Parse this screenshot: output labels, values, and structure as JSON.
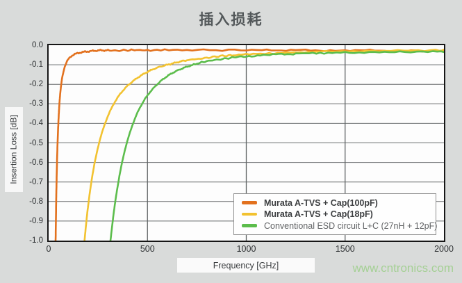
{
  "watermark": {
    "text": "www.cntronics.com",
    "color": "#A5D095"
  },
  "chart_data": {
    "type": "line",
    "title": "插入损耗",
    "xlabel": "Frequency [GHz]",
    "ylabel": "Insertion Loss [dB]",
    "xlim": [
      0,
      2000
    ],
    "ylim": [
      -1.0,
      0.0
    ],
    "xticks": {
      "values": [
        0,
        500,
        1000,
        1500,
        2000
      ],
      "labels": [
        "0",
        "500",
        "1000",
        "1500",
        "2000"
      ]
    },
    "yticks": {
      "values": [
        0.0,
        -0.1,
        -0.2,
        -0.3,
        -0.4,
        -0.5,
        -0.6,
        -0.7,
        -0.8,
        -0.9,
        -1.0
      ],
      "labels": [
        "0.0",
        "-0.1",
        "-0.2",
        "-0.3",
        "-0.4",
        "-0.5",
        "-0.6",
        "-0.7",
        "-0.8",
        "-0.9",
        "-1.0"
      ]
    },
    "grid": true,
    "legend_position": "lower right",
    "series": [
      {
        "name": "Murata A-TVS + Cap(100pF)",
        "color": "#E2711E",
        "bold_legend": true,
        "points": [
          [
            35.3,
            -1.0
          ],
          [
            38,
            -0.813
          ],
          [
            40,
            -0.704
          ],
          [
            43,
            -0.575
          ],
          [
            46,
            -0.478
          ],
          [
            50,
            -0.381
          ],
          [
            55,
            -0.294
          ],
          [
            60,
            -0.234
          ],
          [
            65,
            -0.191
          ],
          [
            70,
            -0.159
          ],
          [
            80,
            -0.116
          ],
          [
            90,
            -0.09
          ],
          [
            100,
            -0.072
          ],
          [
            120,
            -0.053
          ],
          [
            140,
            -0.043
          ],
          [
            170,
            -0.035
          ],
          [
            200,
            -0.031
          ],
          [
            250,
            -0.028
          ],
          [
            300,
            -0.027
          ],
          [
            400,
            -0.026
          ],
          [
            500,
            -0.025
          ],
          [
            700,
            -0.025
          ],
          [
            1000,
            -0.025
          ],
          [
            1250,
            -0.026
          ],
          [
            1500,
            -0.027
          ],
          [
            1750,
            -0.028
          ],
          [
            2000,
            -0.03
          ]
        ]
      },
      {
        "name": "Murata A-TVS + Cap(18pF)",
        "color": "#F2C230",
        "bold_legend": true,
        "points": [
          [
            181.7,
            -1.0
          ],
          [
            190,
            -0.912
          ],
          [
            200,
            -0.821
          ],
          [
            215,
            -0.708
          ],
          [
            230,
            -0.618
          ],
          [
            250,
            -0.522
          ],
          [
            270,
            -0.447
          ],
          [
            300,
            -0.362
          ],
          [
            330,
            -0.3
          ],
          [
            360,
            -0.253
          ],
          [
            400,
            -0.207
          ],
          [
            450,
            -0.166
          ],
          [
            500,
            -0.137
          ],
          [
            560,
            -0.112
          ],
          [
            630,
            -0.092
          ],
          [
            700,
            -0.078
          ],
          [
            800,
            -0.064
          ],
          [
            900,
            -0.054
          ],
          [
            1000,
            -0.047
          ],
          [
            1200,
            -0.039
          ],
          [
            1400,
            -0.033
          ],
          [
            1700,
            -0.029
          ],
          [
            2000,
            -0.026
          ]
        ]
      },
      {
        "name": "Conventional ESD circuit L+C (27nH + 12pF)",
        "color": "#5CBD4C",
        "bold_legend": false,
        "points": [
          [
            313,
            -1.0
          ],
          [
            325,
            -0.894
          ],
          [
            340,
            -0.781
          ],
          [
            360,
            -0.659
          ],
          [
            380,
            -0.562
          ],
          [
            400,
            -0.484
          ],
          [
            430,
            -0.393
          ],
          [
            460,
            -0.324
          ],
          [
            500,
            -0.257
          ],
          [
            550,
            -0.199
          ],
          [
            600,
            -0.159
          ],
          [
            660,
            -0.126
          ],
          [
            720,
            -0.103
          ],
          [
            800,
            -0.083
          ],
          [
            900,
            -0.067
          ],
          [
            1000,
            -0.057
          ],
          [
            1150,
            -0.047
          ],
          [
            1300,
            -0.042
          ],
          [
            1500,
            -0.038
          ],
          [
            1750,
            -0.035
          ],
          [
            2000,
            -0.033
          ]
        ]
      }
    ]
  }
}
